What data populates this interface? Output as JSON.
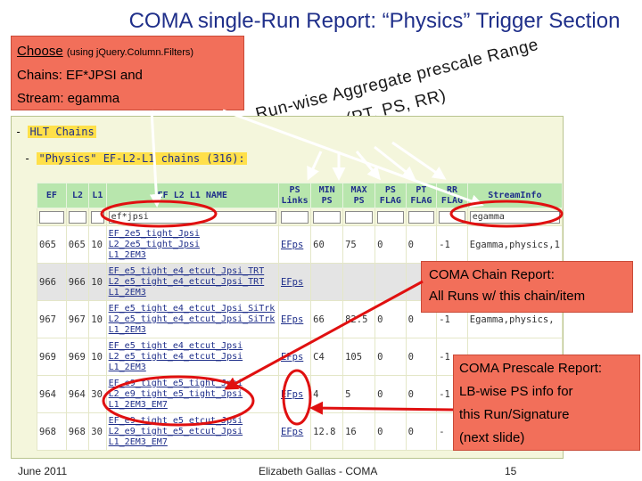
{
  "slide": {
    "title": "COMA single-Run Report: “Physics” Trigger Section",
    "footer_left": "June 2011",
    "footer_center": "Elizabeth Gallas - COMA",
    "footer_right": "15"
  },
  "note": {
    "choose": "Choose",
    "using": "(using jQuery.Column.Filters)",
    "chains": "Chains: EF*JPSI  and",
    "stream": "Stream: egamma"
  },
  "annotation": {
    "line1": "Run-wise Aggregate prescale Range",
    "line2": "and Flags(PT, PS, RR)"
  },
  "panel": {
    "hlt_prefix": "- ",
    "hlt_link": "HLT Chains",
    "phys_prefix": "- ",
    "phys_link": "\"Physics\" EF-L2-L1 chains (316):"
  },
  "table": {
    "headers": [
      "EF",
      "L2",
      "L1",
      "EF L2 L1 NAME",
      "PS Links",
      "MIN PS",
      "MAX PS",
      "PS FLAG",
      "PT FLAG",
      "RR FLAG",
      "StreamInfo"
    ],
    "filter_name": "ef*jpsi",
    "filter_stream": "egamma",
    "rows": [
      {
        "ef": "065",
        "l2": "065",
        "l1": "10",
        "n1": "EF_2e5_tight_Jpsi",
        "n2": "L2_2e5_tight_Jpsi",
        "n3": "L1_2EM3",
        "ps": "EFps",
        "min": "60",
        "max": "75",
        "psf": "0",
        "ptf": "0",
        "rr": "-1",
        "si": "Egamma,physics,1"
      },
      {
        "ef": "966",
        "l2": "966",
        "l1": "10",
        "n1": "EF_e5_tight_e4_etcut_Jpsi_TRT",
        "n2": "L2_e5_tight_e4_etcut_Jpsi_TRT",
        "n3": "L1_2EM3",
        "ps": "EFps",
        "min": "",
        "max": "",
        "psf": "",
        "ptf": "",
        "rr": "",
        "si": ""
      },
      {
        "ef": "967",
        "l2": "967",
        "l1": "10",
        "n1": "EF_e5_tight_e4_etcut_Jpsi_SiTrk",
        "n2": "L2_e5_tight_e4_etcut_Jpsi_SiTrk",
        "n3": "L1_2EM3",
        "ps": "EFps",
        "min": "66",
        "max": "82.5",
        "psf": "0",
        "ptf": "0",
        "rr": "-1",
        "si": "Egamma,physics,"
      },
      {
        "ef": "969",
        "l2": "969",
        "l1": "10",
        "n1": "EF_e5_tight_e4_etcut_Jpsi",
        "n2": "L2_e5_tight_e4_etcut_Jpsi",
        "n3": "L1_2EM3",
        "ps": "EFps",
        "min": "C4",
        "max": "105",
        "psf": "0",
        "ptf": "0",
        "rr": "-1",
        "si": ""
      },
      {
        "ef": "964",
        "l2": "964",
        "l1": "30",
        "n1": "EF_e9_tight_e5_tight_Jpsi",
        "n2": "L2_e9_tight_e5_tight_Jpsi",
        "n3": "L1_2EM3_EM7",
        "ps": "EFps",
        "min": "4",
        "max": "5",
        "psf": "0",
        "ptf": "0",
        "rr": "-1",
        "si": ""
      },
      {
        "ef": "968",
        "l2": "968",
        "l1": "30",
        "n1": "EF_e9_tight_e5_etcut_Jpsi",
        "n2": "L2_e9_tight_e5_etcut_Jpsi",
        "n3": "L1_2EM3_EM7",
        "ps": "EFps",
        "min": "12.8",
        "max": "16",
        "psf": "0",
        "ptf": "0",
        "rr": "-",
        "si": ""
      }
    ]
  },
  "chain_report": {
    "line1": "COMA Chain Report:",
    "line2": "All Runs w/ this chain/item"
  },
  "prescale_report": {
    "line1": "COMA Prescale Report:",
    "line2": "LB-wise PS info for",
    "line3": "this Run/Signature",
    "line4": "(next slide)"
  },
  "colors": {
    "title": "#1f2f8a",
    "callout": "#f26f5a",
    "panel": "#f4f6dc",
    "header": "#b8e6ad",
    "highlight_oval": "#e01010",
    "arrow": "#ffffff"
  }
}
